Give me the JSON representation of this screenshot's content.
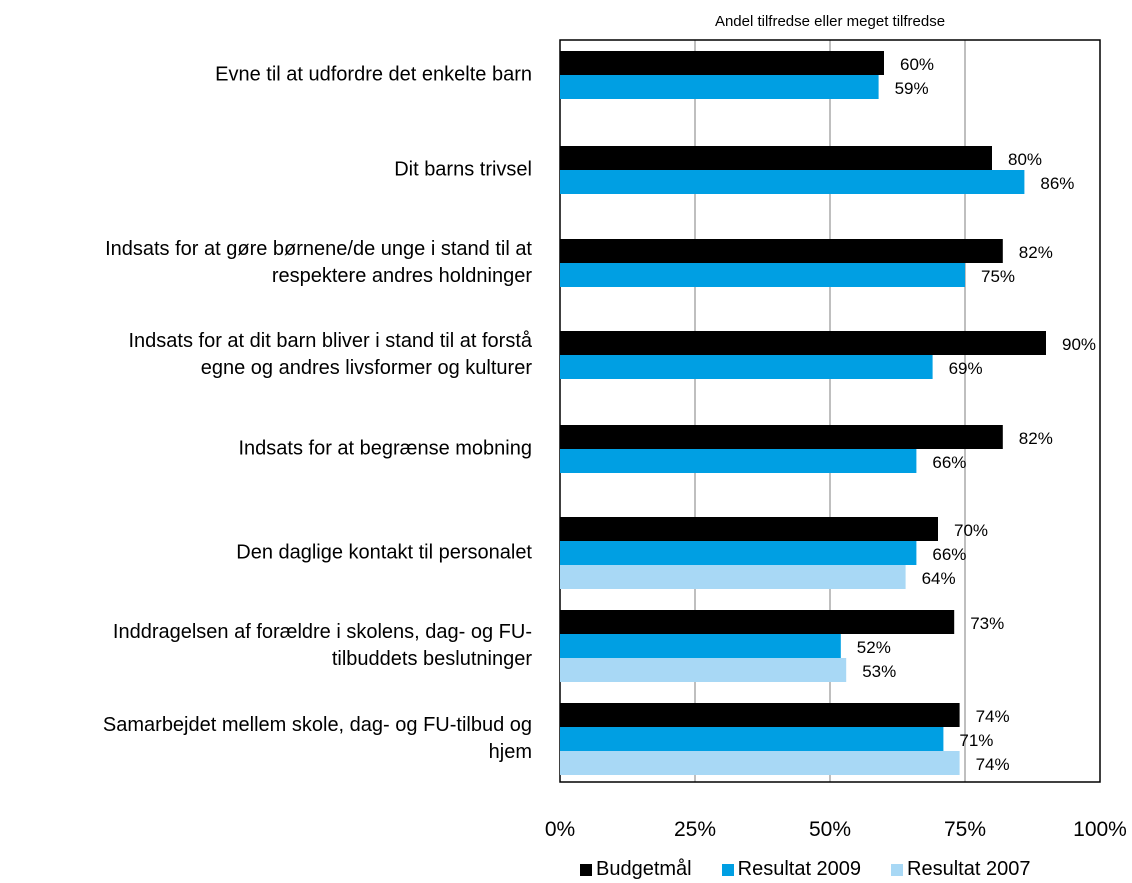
{
  "chart_data": {
    "type": "bar",
    "orientation": "horizontal",
    "title": "Andel tilfredse eller meget tilfredse",
    "categories": [
      "Evne til at udfordre det enkelte barn",
      "Dit barns trivsel",
      "Indsats for at gøre børnene/de unge i stand til at respektere andres holdninger",
      "Indsats for at dit barn bliver i stand til at forstå egne og andres livsformer og kulturer",
      "Indsats for at begrænse mobning",
      "Den daglige kontakt til personalet",
      "Inddragelsen af forældre i skolens, dag- og FU-tilbuddets beslutninger",
      "Samarbejdet mellem skole, dag- og FU-tilbud og hjem"
    ],
    "category_lines": [
      [
        "Evne til at udfordre det enkelte barn"
      ],
      [
        "Dit barns trivsel"
      ],
      [
        "Indsats for at gøre børnene/de unge i stand til at",
        "respektere andres holdninger"
      ],
      [
        "Indsats for at dit barn bliver i stand til at forstå",
        "egne og andres livsformer og kulturer"
      ],
      [
        "Indsats for at begrænse mobning"
      ],
      [
        "Den daglige kontakt til personalet"
      ],
      [
        "Inddragelsen af forældre i skolens, dag- og FU-",
        "tilbuddets beslutninger"
      ],
      [
        "Samarbejdet mellem skole, dag- og FU-tilbud og",
        "hjem"
      ]
    ],
    "series": [
      {
        "name": "Budgetmål",
        "color": "#000000",
        "values": [
          60,
          80,
          82,
          90,
          82,
          70,
          73,
          74
        ],
        "labels": [
          "60%",
          "80%",
          "82%",
          "90%",
          "82%",
          "70%",
          "73%",
          "74%"
        ]
      },
      {
        "name": "Resultat 2009",
        "color": "#009fe3",
        "values": [
          59,
          86,
          75,
          69,
          66,
          66,
          52,
          71
        ],
        "labels": [
          "59%",
          "86%",
          "75%",
          "69%",
          "66%",
          "66%",
          "52%",
          "71%"
        ]
      },
      {
        "name": "Resultat 2007",
        "color": "#a8d8f5",
        "values": [
          null,
          null,
          null,
          null,
          null,
          64,
          53,
          74
        ],
        "labels": [
          "",
          "",
          "",
          "",
          "",
          "64%",
          "53%",
          "74%"
        ]
      }
    ],
    "xlim": [
      0,
      100
    ],
    "xticks": [
      "0%",
      "25%",
      "50%",
      "75%",
      "100%"
    ],
    "grid": true,
    "legend_position": "bottom"
  }
}
